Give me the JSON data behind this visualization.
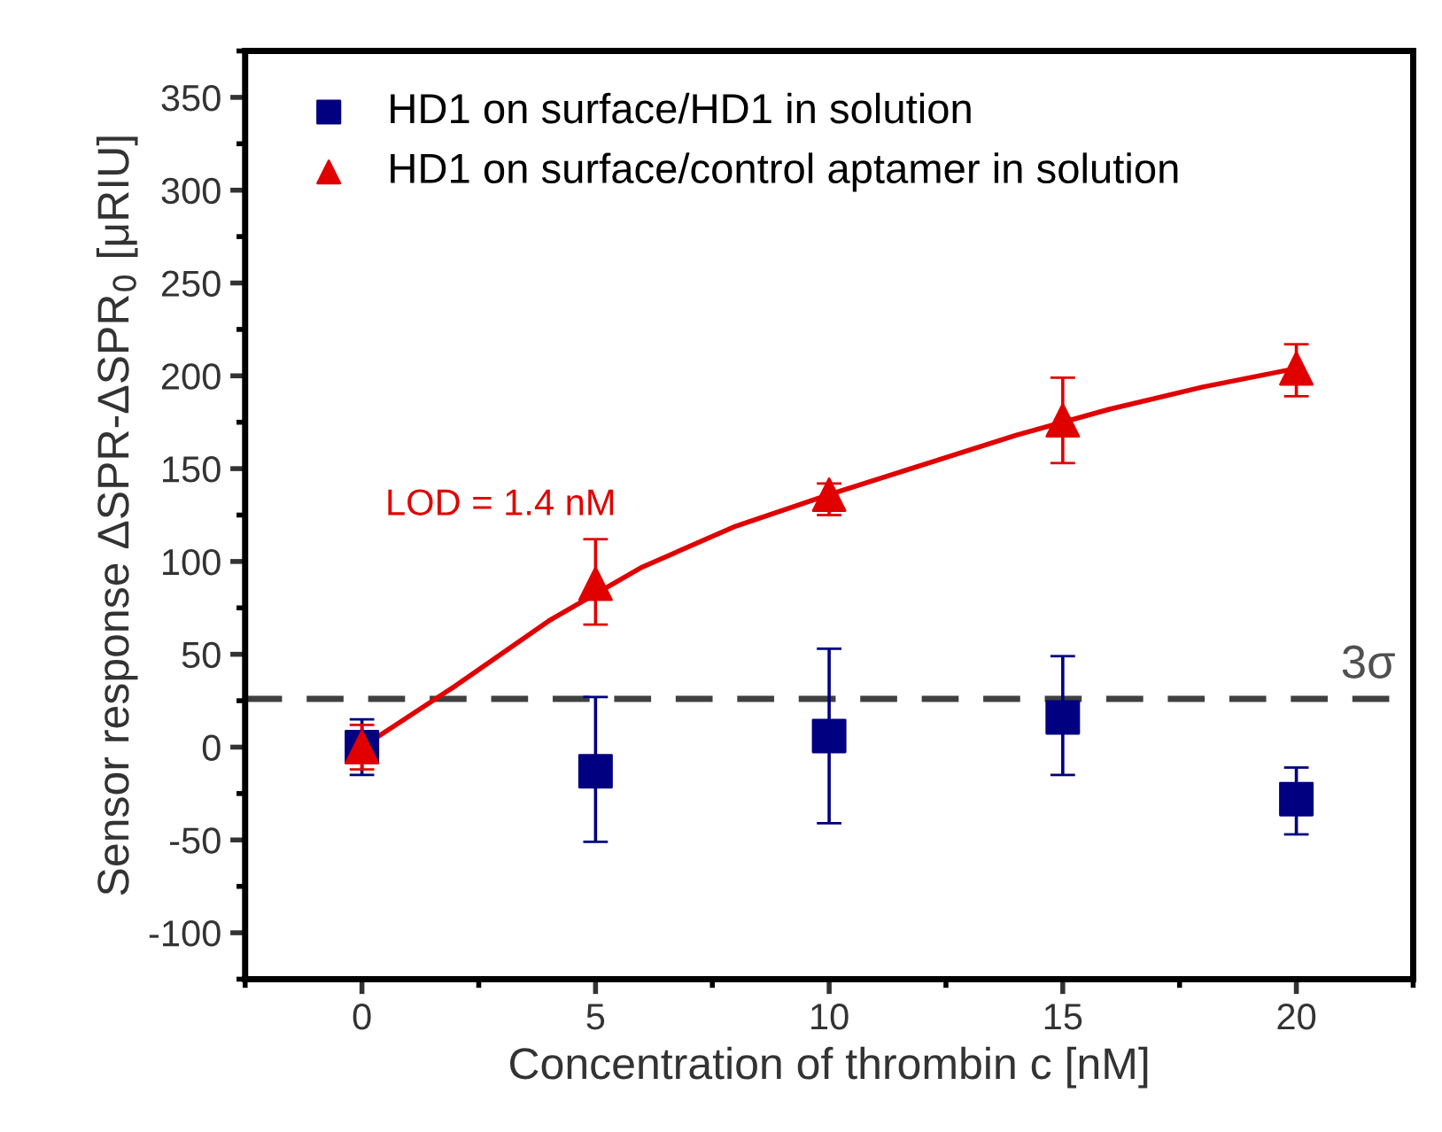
{
  "chart_data": {
    "type": "scatter",
    "xlabel": "Concentration of thrombin c [nM]",
    "ylabel": "Sensor response ΔSPR-ΔSPR$_{0}$ [μRIU]",
    "xlim": [
      -2.5,
      22.5
    ],
    "xticks": [
      0,
      5,
      10,
      15,
      20
    ],
    "ylim": [
      -125,
      375
    ],
    "yticks": [
      -100,
      -50,
      0,
      50,
      100,
      150,
      200,
      250,
      300,
      350
    ],
    "grid": false,
    "legend": "top left",
    "series": [
      {
        "name": "HD1 on surface/HD1 in solution",
        "marker": "square",
        "color": "#000080",
        "x": [
          0,
          5,
          10,
          15,
          20
        ],
        "values": [
          0,
          -13,
          6,
          16,
          -28
        ],
        "errors": [
          [
            -15,
            15
          ],
          [
            -51,
            27
          ],
          [
            -41,
            53
          ],
          [
            -15,
            49
          ],
          [
            -47,
            -11
          ]
        ]
      },
      {
        "name": "HD1 on surface/control aptamer in solution",
        "marker": "triangle",
        "color": "#e00000",
        "x": [
          0,
          5,
          10,
          15,
          20
        ],
        "values": [
          0,
          88,
          136,
          176,
          204
        ],
        "errors": [
          [
            -12,
            12
          ],
          [
            66,
            112
          ],
          [
            125,
            142
          ],
          [
            153,
            199
          ],
          [
            189,
            217
          ]
        ]
      },
      {
        "type": "line",
        "marker": "none",
        "color": "#e00000",
        "x": [
          0,
          2,
          4,
          6,
          8,
          10,
          12,
          14,
          16,
          18,
          20
        ],
        "values": [
          0,
          33,
          68,
          97,
          119,
          136,
          152,
          168,
          182,
          194,
          204
        ]
      }
    ],
    "ref_lines": [
      {
        "axis": "y",
        "value": 26,
        "label": "3σ",
        "color": "#404040",
        "line_style": "dashed"
      }
    ],
    "annotations": [
      "LOD = 1.4 nM"
    ]
  }
}
